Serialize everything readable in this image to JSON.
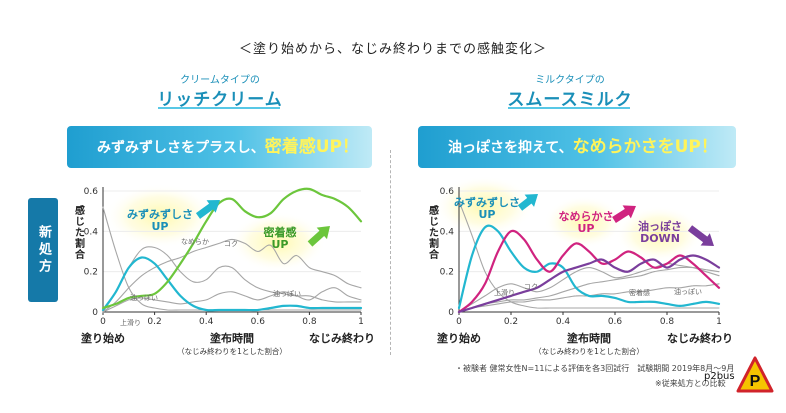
{
  "heading": "＜塗り始めから、なじみ終わりまでの感触変化＞",
  "badge": "新処方",
  "panels": [
    {
      "subtitle": "クリームタイプの",
      "product": "リッチクリーム",
      "banner": {
        "pre": "みずみずしさをプラスし、",
        "em": "密着感UP！"
      }
    },
    {
      "subtitle": "ミルクタイプの",
      "product": "スムースミルク",
      "banner": {
        "pre": "油っぽさを抑えて、",
        "em": "なめらかさをUP！"
      }
    }
  ],
  "footnote": "・被験者 健常女性N=11による評価を各3回試行　試験期間 2019年8月〜9月",
  "footnote2": "※従来処方との比較",
  "watermark": "p2bus",
  "stamp_letter": "P",
  "colors": {
    "cyan": "#22b7d0",
    "green": "#6cc63c",
    "magenta": "#d0237f",
    "purple": "#7a3e9c",
    "gray": "#a6a6a6",
    "blue": "#1a8fb8"
  },
  "chart_data": [
    {
      "type": "line",
      "ylabel": "感じた割合",
      "xlabel": "塗布時間",
      "xlabel_note": "（なじみ終わりを1とした割合）",
      "x_start_label": "塗り始め",
      "x_end_label": "なじみ終わり",
      "xlim": [
        0,
        1
      ],
      "ylim": [
        0,
        0.6
      ],
      "xticks": [
        "0",
        "0.2",
        "0.4",
        "0.6",
        "0.8",
        "1"
      ],
      "yticks": [
        "0",
        "0.2",
        "0.4",
        "0.6"
      ],
      "series": [
        {
          "name": "みずみずしさ",
          "emphasis": true,
          "color": "#22b7d0",
          "x": [
            0,
            0.05,
            0.1,
            0.15,
            0.2,
            0.25,
            0.3,
            0.35,
            0.4,
            0.45,
            0.5,
            0.55,
            0.6,
            0.65,
            0.7,
            0.75,
            0.8,
            0.85,
            0.9,
            0.95,
            1
          ],
          "y": [
            0.01,
            0.1,
            0.22,
            0.27,
            0.24,
            0.16,
            0.08,
            0.03,
            0.01,
            0.01,
            0.01,
            0.01,
            0.01,
            0.02,
            0.03,
            0.03,
            0.02,
            0.02,
            0.02,
            0.02,
            0.02
          ]
        },
        {
          "name": "密着感",
          "emphasis": true,
          "color": "#6cc63c",
          "x": [
            0,
            0.05,
            0.1,
            0.15,
            0.2,
            0.25,
            0.3,
            0.35,
            0.4,
            0.45,
            0.5,
            0.55,
            0.6,
            0.65,
            0.7,
            0.75,
            0.8,
            0.85,
            0.9,
            0.95,
            1
          ],
          "y": [
            0.02,
            0.04,
            0.07,
            0.08,
            0.09,
            0.15,
            0.24,
            0.34,
            0.45,
            0.54,
            0.56,
            0.5,
            0.47,
            0.49,
            0.56,
            0.6,
            0.61,
            0.58,
            0.56,
            0.52,
            0.45
          ]
        },
        {
          "name": "なめらか",
          "emphasis": false,
          "color": "#a6a6a6",
          "x": [
            0,
            0.05,
            0.1,
            0.15,
            0.2,
            0.25,
            0.3,
            0.35,
            0.4,
            0.45,
            0.5,
            0.55,
            0.6,
            0.65,
            0.7,
            0.75,
            0.8,
            0.85,
            0.9,
            0.95,
            1
          ],
          "y": [
            0.0,
            0.1,
            0.22,
            0.31,
            0.32,
            0.28,
            0.2,
            0.15,
            0.16,
            0.22,
            0.22,
            0.16,
            0.12,
            0.1,
            0.09,
            0.08,
            0.08,
            0.06,
            0.05,
            0.05,
            0.05
          ]
        },
        {
          "name": "コク",
          "emphasis": false,
          "color": "#a6a6a6",
          "x": [
            0,
            0.05,
            0.1,
            0.15,
            0.2,
            0.25,
            0.3,
            0.35,
            0.4,
            0.45,
            0.5,
            0.55,
            0.6,
            0.65,
            0.7,
            0.75,
            0.8,
            0.85,
            0.9,
            0.95,
            1
          ],
          "y": [
            0.0,
            0.05,
            0.12,
            0.18,
            0.22,
            0.25,
            0.27,
            0.3,
            0.32,
            0.34,
            0.36,
            0.34,
            0.3,
            0.33,
            0.24,
            0.28,
            0.22,
            0.2,
            0.18,
            0.14,
            0.12
          ]
        },
        {
          "name": "油っぽい",
          "emphasis": false,
          "color": "#a6a6a6",
          "x": [
            0,
            0.05,
            0.1,
            0.15,
            0.2,
            0.25,
            0.3,
            0.35,
            0.4,
            0.45,
            0.5,
            0.55,
            0.6,
            0.65,
            0.7,
            0.75,
            0.8,
            0.85,
            0.9,
            0.95,
            1
          ],
          "y": [
            0.0,
            0.03,
            0.06,
            0.07,
            0.06,
            0.05,
            0.04,
            0.05,
            0.06,
            0.09,
            0.1,
            0.08,
            0.06,
            0.08,
            0.1,
            0.08,
            0.06,
            0.1,
            0.12,
            0.08,
            0.06
          ]
        },
        {
          "name": "上滑り",
          "emphasis": false,
          "color": "#a6a6a6",
          "x": [
            0,
            0.05,
            0.1,
            0.15,
            0.2,
            0.25,
            0.3,
            0.35,
            0.4,
            0.45,
            0.5,
            0.55,
            0.6,
            0.65,
            0.7,
            0.75,
            0.8,
            0.85,
            0.9,
            0.95,
            1
          ],
          "y": [
            0.52,
            0.3,
            0.12,
            0.04,
            0.02,
            0.01,
            0.01,
            0.01,
            0.01,
            0.01,
            0.01,
            0.01,
            0.01,
            0.01,
            0.01,
            0.01,
            0.01,
            0.01,
            0.01,
            0.01,
            0.01
          ]
        }
      ],
      "annotations": [
        "みずみずしさ UP",
        "密着感 UP"
      ],
      "line_labels": [
        "なめらか",
        "コク",
        "油っぽい",
        "油っぽい",
        "上滑り"
      ]
    },
    {
      "type": "line",
      "ylabel": "感じた割合",
      "xlabel": "塗布時間",
      "xlabel_note": "（なじみ終わりを1とした割合）",
      "x_start_label": "塗り始め",
      "x_end_label": "なじみ終わり",
      "xlim": [
        0,
        1
      ],
      "ylim": [
        0,
        0.6
      ],
      "xticks": [
        "0",
        "0.2",
        "0.4",
        "0.6",
        "0.8",
        "1"
      ],
      "yticks": [
        "0",
        "0.2",
        "0.4",
        "0.6"
      ],
      "series": [
        {
          "name": "みずみずしさ",
          "emphasis": true,
          "color": "#22b7d0",
          "x": [
            0,
            0.05,
            0.1,
            0.15,
            0.2,
            0.25,
            0.3,
            0.35,
            0.4,
            0.45,
            0.5,
            0.55,
            0.6,
            0.65,
            0.7,
            0.75,
            0.8,
            0.85,
            0.9,
            0.95,
            1
          ],
          "y": [
            0.02,
            0.28,
            0.42,
            0.4,
            0.3,
            0.22,
            0.2,
            0.24,
            0.22,
            0.12,
            0.08,
            0.08,
            0.07,
            0.05,
            0.05,
            0.05,
            0.04,
            0.03,
            0.04,
            0.05,
            0.04
          ]
        },
        {
          "name": "なめらかさ",
          "emphasis": true,
          "color": "#d0237f",
          "x": [
            0,
            0.05,
            0.1,
            0.15,
            0.2,
            0.25,
            0.3,
            0.35,
            0.4,
            0.45,
            0.5,
            0.55,
            0.6,
            0.65,
            0.7,
            0.75,
            0.8,
            0.85,
            0.9,
            0.95,
            1
          ],
          "y": [
            0.0,
            0.05,
            0.14,
            0.3,
            0.4,
            0.36,
            0.26,
            0.2,
            0.28,
            0.34,
            0.3,
            0.24,
            0.26,
            0.3,
            0.27,
            0.22,
            0.24,
            0.28,
            0.24,
            0.18,
            0.12
          ]
        },
        {
          "name": "油っぽさ",
          "emphasis": true,
          "color": "#7a3e9c",
          "x": [
            0,
            0.05,
            0.1,
            0.15,
            0.2,
            0.25,
            0.3,
            0.35,
            0.4,
            0.45,
            0.5,
            0.55,
            0.6,
            0.65,
            0.7,
            0.75,
            0.8,
            0.85,
            0.9,
            0.95,
            1
          ],
          "y": [
            0.0,
            0.02,
            0.04,
            0.06,
            0.08,
            0.1,
            0.12,
            0.16,
            0.2,
            0.22,
            0.24,
            0.26,
            0.22,
            0.2,
            0.24,
            0.26,
            0.22,
            0.26,
            0.28,
            0.26,
            0.22
          ]
        },
        {
          "name": "上滑り",
          "emphasis": false,
          "color": "#a6a6a6",
          "x": [
            0,
            0.05,
            0.1,
            0.15,
            0.2,
            0.25,
            0.3,
            0.35,
            0.4,
            0.45,
            0.5,
            0.55,
            0.6,
            0.65,
            0.7,
            0.75,
            0.8,
            0.85,
            0.9,
            0.95,
            1
          ],
          "y": [
            0.55,
            0.38,
            0.2,
            0.1,
            0.05,
            0.03,
            0.02,
            0.02,
            0.02,
            0.02,
            0.02,
            0.02,
            0.02,
            0.02,
            0.02,
            0.02,
            0.02,
            0.02,
            0.02,
            0.02,
            0.02
          ]
        },
        {
          "name": "コク",
          "emphasis": false,
          "color": "#a6a6a6",
          "x": [
            0,
            0.05,
            0.1,
            0.15,
            0.2,
            0.25,
            0.3,
            0.35,
            0.4,
            0.45,
            0.5,
            0.55,
            0.6,
            0.65,
            0.7,
            0.75,
            0.8,
            0.85,
            0.9,
            0.95,
            1
          ],
          "y": [
            0.0,
            0.04,
            0.08,
            0.12,
            0.14,
            0.12,
            0.1,
            0.12,
            0.16,
            0.2,
            0.22,
            0.2,
            0.17,
            0.18,
            0.2,
            0.22,
            0.24,
            0.23,
            0.22,
            0.2,
            0.18
          ]
        },
        {
          "name": "密着感",
          "emphasis": false,
          "color": "#a6a6a6",
          "x": [
            0,
            0.05,
            0.1,
            0.15,
            0.2,
            0.25,
            0.3,
            0.35,
            0.4,
            0.45,
            0.5,
            0.55,
            0.6,
            0.65,
            0.7,
            0.75,
            0.8,
            0.85,
            0.9,
            0.95,
            1
          ],
          "y": [
            0.0,
            0.02,
            0.04,
            0.05,
            0.06,
            0.06,
            0.07,
            0.08,
            0.1,
            0.12,
            0.14,
            0.15,
            0.16,
            0.17,
            0.18,
            0.2,
            0.21,
            0.22,
            0.22,
            0.21,
            0.2
          ]
        },
        {
          "name": "油っぽい",
          "emphasis": false,
          "color": "#a6a6a6",
          "x": [
            0,
            0.05,
            0.1,
            0.15,
            0.2,
            0.25,
            0.3,
            0.35,
            0.4,
            0.45,
            0.5,
            0.55,
            0.6,
            0.65,
            0.7,
            0.75,
            0.8,
            0.85,
            0.9,
            0.95,
            1
          ],
          "y": [
            0.0,
            0.02,
            0.03,
            0.04,
            0.05,
            0.05,
            0.06,
            0.06,
            0.07,
            0.08,
            0.08,
            0.09,
            0.09,
            0.1,
            0.1,
            0.11,
            0.12,
            0.12,
            0.13,
            0.13,
            0.14
          ]
        }
      ],
      "annotations": [
        "みずみずしさ UP",
        "なめらかさ UP",
        "油っぽさ DOWN"
      ],
      "line_labels": [
        "上滑り",
        "コク",
        "密着感",
        "油っぽい"
      ]
    }
  ]
}
